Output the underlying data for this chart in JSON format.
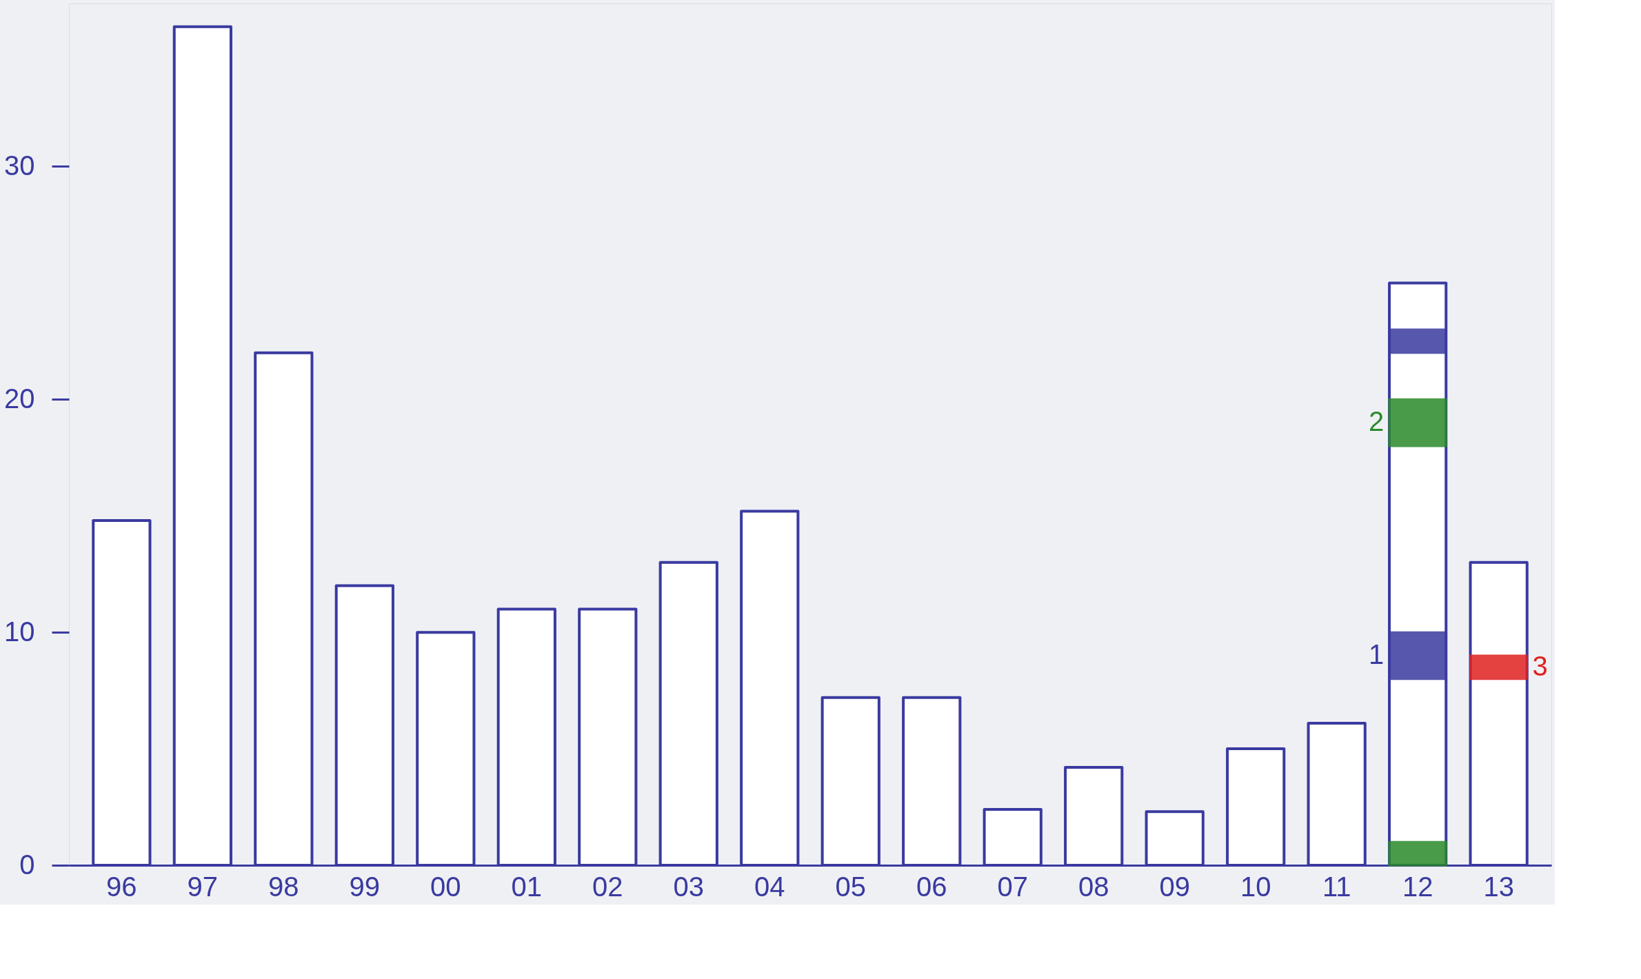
{
  "chart_data": {
    "type": "bar",
    "categories": [
      "96",
      "97",
      "98",
      "99",
      "00",
      "01",
      "02",
      "03",
      "04",
      "05",
      "06",
      "07",
      "08",
      "09",
      "10",
      "11",
      "12",
      "13"
    ],
    "series": [
      {
        "color": "#3a3aa0",
        "values": [
          14.8,
          36,
          22,
          12,
          10,
          11,
          11,
          13,
          15.2,
          7.2,
          7.2,
          2.4,
          4.2,
          2.3,
          5,
          6.1,
          25,
          13
        ]
      },
      {
        "color": "#2a8a2a",
        "values": [
          null,
          null,
          null,
          null,
          null,
          null,
          null,
          null,
          null,
          null,
          null,
          null,
          null,
          null,
          null,
          null,
          1,
          null
        ],
        "base": [
          null,
          null,
          null,
          null,
          null,
          null,
          null,
          null,
          null,
          null,
          null,
          null,
          null,
          null,
          null,
          null,
          0,
          null
        ]
      },
      {
        "name": "1",
        "color": "#3a3aa0",
        "values": [
          null,
          null,
          null,
          null,
          null,
          null,
          null,
          null,
          null,
          null,
          null,
          null,
          null,
          null,
          null,
          null,
          2,
          null
        ],
        "base": [
          null,
          null,
          null,
          null,
          null,
          null,
          null,
          null,
          null,
          null,
          null,
          null,
          null,
          null,
          null,
          null,
          8,
          null
        ]
      },
      {
        "name": "2",
        "color": "#2a8a2a",
        "values": [
          null,
          null,
          null,
          null,
          null,
          null,
          null,
          null,
          null,
          null,
          null,
          null,
          null,
          null,
          null,
          null,
          2,
          null
        ],
        "base": [
          null,
          null,
          null,
          null,
          null,
          null,
          null,
          null,
          null,
          null,
          null,
          null,
          null,
          null,
          null,
          null,
          18,
          null
        ]
      },
      {
        "color": "#3a3aa0",
        "values": [
          null,
          null,
          null,
          null,
          null,
          null,
          null,
          null,
          null,
          null,
          null,
          null,
          null,
          null,
          null,
          null,
          1,
          null
        ],
        "base": [
          null,
          null,
          null,
          null,
          null,
          null,
          null,
          null,
          null,
          null,
          null,
          null,
          null,
          null,
          null,
          null,
          22,
          null
        ]
      },
      {
        "name": "3",
        "color": "#e02020",
        "values": [
          null,
          null,
          null,
          null,
          null,
          null,
          null,
          null,
          null,
          null,
          null,
          null,
          null,
          null,
          null,
          null,
          null,
          1
        ],
        "base": [
          null,
          null,
          null,
          null,
          null,
          null,
          null,
          null,
          null,
          null,
          null,
          null,
          null,
          null,
          null,
          null,
          null,
          8
        ]
      }
    ],
    "ylim": [
      0,
      37
    ],
    "yticks": [
      0,
      10,
      20,
      30
    ],
    "grid": false
  }
}
